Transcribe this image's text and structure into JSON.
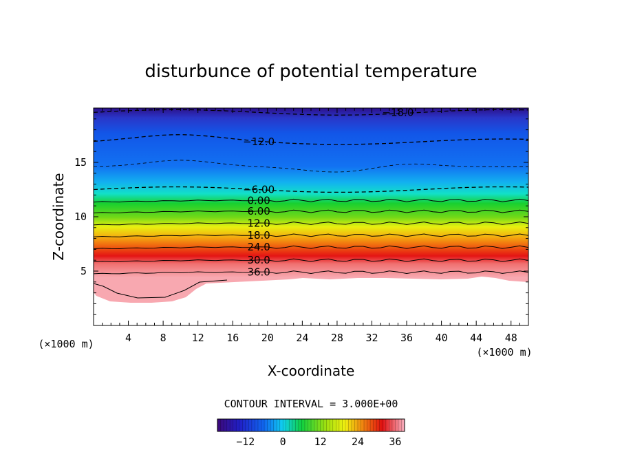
{
  "chart_data": {
    "type": "contour",
    "title": "disturbunce of potential temperature",
    "xlabel": "X-coordinate",
    "ylabel": "Z-coordinate",
    "x_unit_left": "(×1000 m)",
    "x_unit_right": "(×1000 m)",
    "xlim": [
      0,
      50
    ],
    "ylim": [
      0,
      20
    ],
    "x_ticks": [
      4,
      8,
      12,
      16,
      20,
      24,
      28,
      32,
      36,
      40,
      44,
      48
    ],
    "y_ticks": [
      5,
      10,
      15
    ],
    "contour_interval_text": "CONTOUR INTERVAL = 3.000E+00",
    "contour_interval": 3,
    "colorbar": {
      "range": [
        -21,
        39
      ],
      "tick_values": [
        -12,
        0,
        12,
        24,
        36
      ],
      "tick_labels": [
        "−12",
        "0",
        "12",
        "24",
        "36"
      ]
    },
    "contour_labels": [
      {
        "text": "−18.0",
        "value": -18,
        "x": 35,
        "z": 19.6
      },
      {
        "text": "−12.0",
        "value": -12,
        "x": 19,
        "z": 16.9
      },
      {
        "text": "−6.00",
        "value": -6,
        "x": 19,
        "z": 12.5
      },
      {
        "text": "0.00",
        "value": 0,
        "x": 19,
        "z": 11.5
      },
      {
        "text": "6.00",
        "value": 6,
        "x": 19,
        "z": 10.5
      },
      {
        "text": "12.0",
        "value": 12,
        "x": 19,
        "z": 9.4
      },
      {
        "text": "18.0",
        "value": 18,
        "x": 19,
        "z": 8.3
      },
      {
        "text": "24.0",
        "value": 24,
        "x": 19,
        "z": 7.2
      },
      {
        "text": "30.0",
        "value": 30,
        "x": 19,
        "z": 6.0
      },
      {
        "text": "36.0",
        "value": 36,
        "x": 19,
        "z": 4.9
      }
    ],
    "colors": {
      "low": "#30108a",
      "blue": "#1060e8",
      "cyan": "#10d8e8",
      "green": "#20c020",
      "yellow": "#f0f010",
      "orange": "#f07010",
      "red": "#e01010",
      "pink": "#f8a0a8"
    }
  }
}
